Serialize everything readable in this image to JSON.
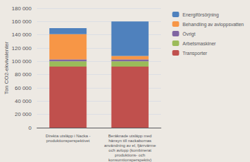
{
  "chart_data": {
    "type": "bar",
    "stacked": true,
    "categories": [
      "Direkta utsläpp i Nacka -\nproduktionsperspektivet",
      "Beräknade utsläpp med\nhänsyn till nackabornas\nanvändning av el, fjärrvärme\noch avlopp (kombinerat\nproduktions- och\nkonsumtionsperspektiv)"
    ],
    "series": [
      {
        "name": "Transporter",
        "color": "#c0504d",
        "values": [
          92000,
          92000
        ]
      },
      {
        "name": "Arbetsmaskiner",
        "color": "#9bbb59",
        "values": [
          8000,
          8000
        ]
      },
      {
        "name": "Övrigt",
        "color": "#8064a2",
        "values": [
          3000,
          3000
        ]
      },
      {
        "name": "Behandling av avloppsvatten",
        "color": "#f79646",
        "values": [
          38000,
          5000
        ]
      },
      {
        "name": "Energiförsörjning",
        "color": "#4f81bd",
        "values": [
          9000,
          52000
        ]
      }
    ],
    "ylabel": "Ton CO2-ekvivalenter",
    "ylim": [
      0,
      180000
    ],
    "yticks": [
      0,
      {
        "value": 20000,
        "label": "20 000"
      },
      {
        "value": 40000,
        "label": "40 000"
      },
      {
        "value": 60000,
        "label": "60 000"
      },
      {
        "value": 80000,
        "label": "80 000"
      },
      {
        "value": 100000,
        "label": "100 000"
      },
      {
        "value": 120000,
        "label": "120 000"
      },
      {
        "value": 140000,
        "label": "140 000"
      },
      {
        "value": 160000,
        "label": "160 000"
      },
      {
        "value": 180000,
        "label": "180 000"
      }
    ],
    "grid": true,
    "legend": "right"
  }
}
